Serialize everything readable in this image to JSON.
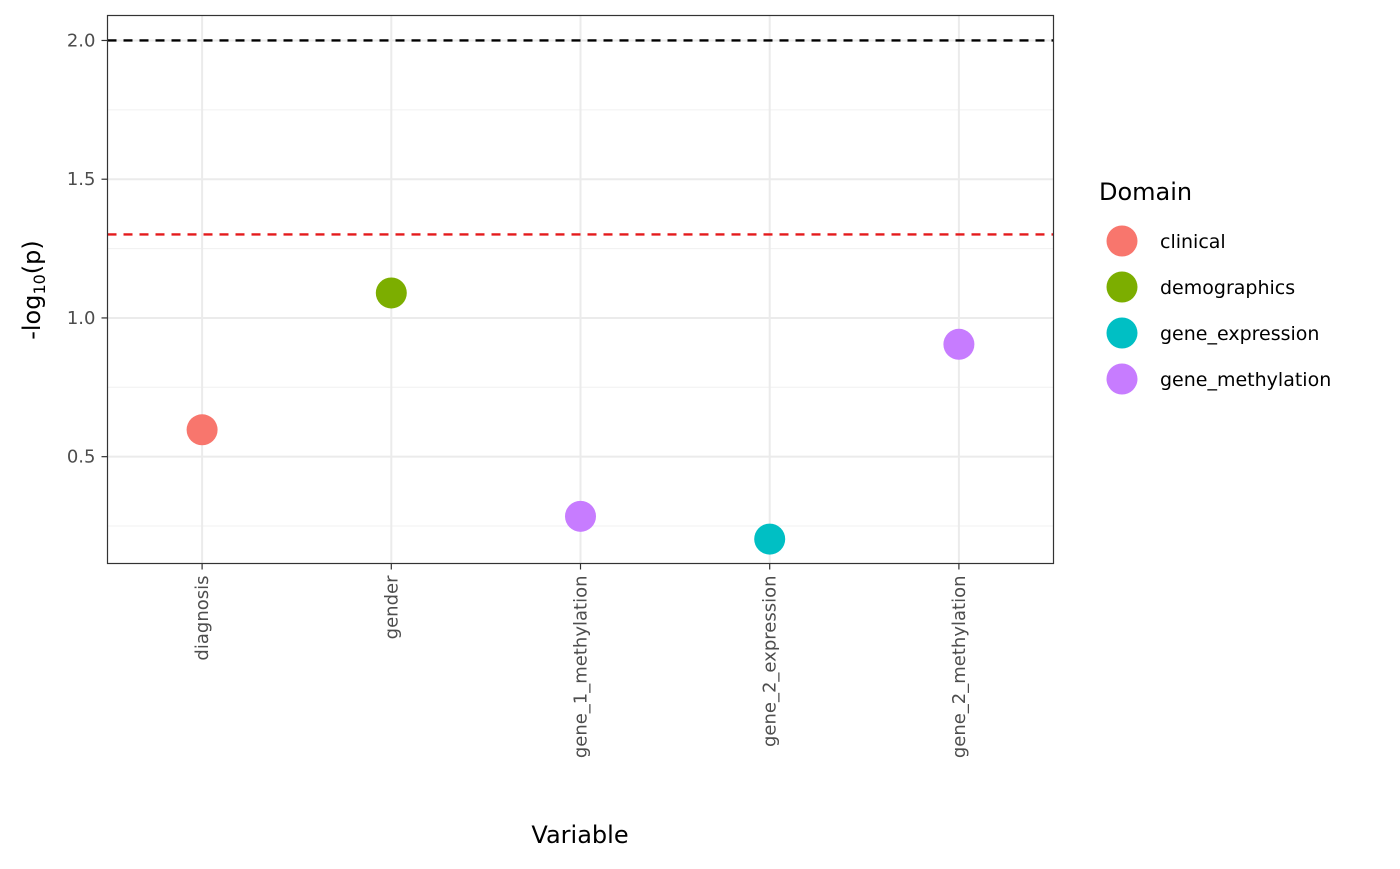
{
  "chart_data": {
    "type": "scatter",
    "title": "",
    "xlabel": "Variable",
    "ylabel": "-log10(p)",
    "ylabel_parts": {
      "prefix": "-log",
      "subscript": "10",
      "suffix": "(p)"
    },
    "categories": [
      "diagnosis",
      "gender",
      "gene_1_methylation",
      "gene_2_expression",
      "gene_2_methylation"
    ],
    "y_ticks": [
      0.5,
      1.0,
      1.5,
      2.0
    ],
    "y_tick_labels": [
      "0.5",
      "1.0",
      "1.5",
      "2.0"
    ],
    "ylim": [
      0.115,
      2.09
    ],
    "points": [
      {
        "x": "diagnosis",
        "y": 0.597,
        "domain": "clinical"
      },
      {
        "x": "gender",
        "y": 1.09,
        "domain": "demographics"
      },
      {
        "x": "gene_1_methylation",
        "y": 0.285,
        "domain": "gene_methylation"
      },
      {
        "x": "gene_2_expression",
        "y": 0.203,
        "domain": "gene_expression"
      },
      {
        "x": "gene_2_methylation",
        "y": 0.905,
        "domain": "gene_methylation"
      }
    ],
    "reference_lines": [
      {
        "y": 2.0,
        "color": "#000000",
        "style": "dashed"
      },
      {
        "y": 1.301,
        "color": "#e41a1c",
        "style": "dashed"
      }
    ],
    "legend": {
      "title": "Domain",
      "position": "right",
      "entries": [
        {
          "label": "clinical",
          "color": "#F8766D"
        },
        {
          "label": "demographics",
          "color": "#7CAE00"
        },
        {
          "label": "gene_expression",
          "color": "#00BFC4"
        },
        {
          "label": "gene_methylation",
          "color": "#C77CFF"
        }
      ]
    },
    "grid": true
  }
}
